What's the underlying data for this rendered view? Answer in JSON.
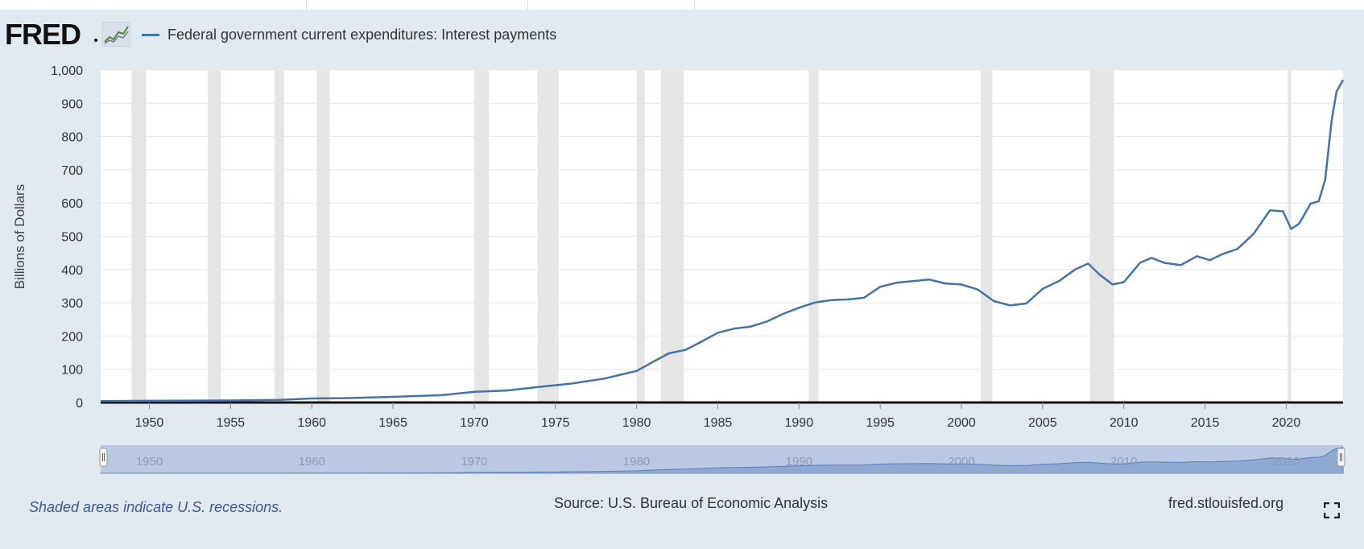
{
  "logo": {
    "text": "FRED",
    "icon": "line-chart-icon"
  },
  "legend": {
    "label": "Federal government current expenditures: Interest payments",
    "color": "#4572a7"
  },
  "footer": {
    "recession_note": "Shaded areas indicate U.S. recessions.",
    "source": "Source: U.S. Bureau of Economic Analysis",
    "site": "fred.stlouisfed.org"
  },
  "colors": {
    "line": "#4572a7",
    "recession": "#e5e5e5",
    "background": "#e1e9f0",
    "navigator_fill": "#b9c9e4"
  },
  "chart_data": {
    "type": "line",
    "title": "",
    "ylabel": "Billions of Dollars",
    "xlabel": "",
    "xlim": [
      1947,
      2023.5
    ],
    "ylim": [
      0,
      1000
    ],
    "y_ticks": [
      0,
      100,
      200,
      300,
      400,
      500,
      600,
      700,
      800,
      900,
      1000
    ],
    "y_tick_labels": [
      "0",
      "100",
      "200",
      "300",
      "400",
      "500",
      "600",
      "700",
      "800",
      "900",
      "1,000"
    ],
    "x_ticks": [
      1950,
      1955,
      1960,
      1965,
      1970,
      1975,
      1980,
      1985,
      1990,
      1995,
      2000,
      2005,
      2010,
      2015,
      2020
    ],
    "x_tick_labels": [
      "1950",
      "1955",
      "1960",
      "1965",
      "1970",
      "1975",
      "1980",
      "1985",
      "1990",
      "1995",
      "2000",
      "2005",
      "2010",
      "2015",
      "2020"
    ],
    "grid": true,
    "legend_position": "top-left",
    "recessions": [
      [
        1948.9,
        1949.8
      ],
      [
        1953.6,
        1954.4
      ],
      [
        1957.7,
        1958.3
      ],
      [
        1960.3,
        1961.1
      ],
      [
        1970.0,
        1970.9
      ],
      [
        1973.9,
        1975.2
      ],
      [
        1980.0,
        1980.5
      ],
      [
        1981.5,
        1982.9
      ],
      [
        1990.6,
        1991.2
      ],
      [
        2001.2,
        2001.9
      ],
      [
        2007.9,
        2009.4
      ],
      [
        2020.1,
        2020.3
      ]
    ],
    "navigator": {
      "x_ticks": [
        1950,
        1960,
        1970,
        1980,
        1990,
        2000,
        2010,
        2020
      ],
      "x_tick_labels": [
        "1950",
        "1960",
        "1970",
        "1980",
        "1990",
        "2000",
        "2010",
        "2020"
      ]
    },
    "series": [
      {
        "name": "Federal government current expenditures: Interest payments",
        "x": [
          1947,
          1950,
          1955,
          1958,
          1960,
          1962,
          1965,
          1968,
          1970,
          1972,
          1974,
          1976,
          1978,
          1980,
          1980.5,
          1981,
          1982,
          1983,
          1984,
          1985,
          1986,
          1987,
          1988,
          1989,
          1990,
          1991,
          1992,
          1993,
          1994,
          1995,
          1996,
          1997,
          1998,
          1999,
          2000,
          2001,
          2002,
          2003,
          2004,
          2005,
          2006,
          2007,
          2007.8,
          2008.5,
          2009.3,
          2010,
          2011,
          2011.7,
          2012.5,
          2013.5,
          2014.5,
          2015.3,
          2016,
          2017,
          2018,
          2019,
          2019.8,
          2020.3,
          2020.8,
          2021.5,
          2022,
          2022.4,
          2022.8,
          2023.1,
          2023.5
        ],
        "values": [
          4,
          5,
          6,
          8,
          12,
          13,
          17,
          22,
          32,
          36,
          47,
          57,
          72,
          95,
          108,
          122,
          148,
          158,
          183,
          210,
          222,
          228,
          243,
          266,
          285,
          301,
          308,
          310,
          315,
          348,
          360,
          365,
          370,
          358,
          355,
          340,
          305,
          292,
          298,
          342,
          365,
          400,
          418,
          385,
          355,
          362,
          420,
          435,
          420,
          413,
          440,
          428,
          445,
          462,
          508,
          578,
          575,
          522,
          538,
          598,
          605,
          670,
          850,
          935,
          970
        ]
      }
    ]
  }
}
